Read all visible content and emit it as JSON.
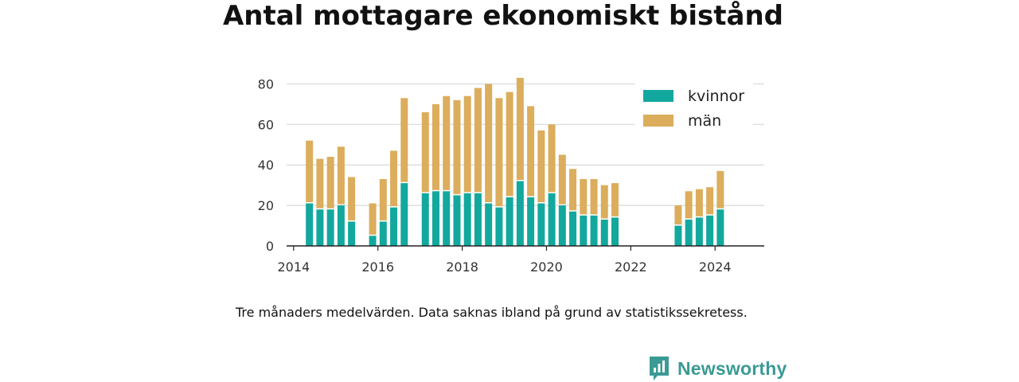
{
  "title": "Antal mottagare ekonomiskt bistånd",
  "note": "Tre månaders medelvärden. Data saknas ibland på grund av statistikssekretess.",
  "brand": {
    "name": "Newsworthy",
    "color": "#3a9a94",
    "icon": "newsworthy-logo-icon"
  },
  "colors": {
    "kvinnor": "#13a89e",
    "man": "#dbad5c",
    "grid": "#d9d9d9",
    "axis": "#222222"
  },
  "chart_data": {
    "type": "bar",
    "stacked": true,
    "title": "Antal mottagare ekonomiskt bistånd",
    "xlabel": "",
    "ylabel": "",
    "x_ticks": [
      "2014",
      "2016",
      "2018",
      "2020",
      "2022",
      "2024"
    ],
    "y_ticks": [
      0,
      20,
      40,
      60,
      80
    ],
    "ylim": [
      0,
      90
    ],
    "xlim": [
      "2013-11",
      "2025-03"
    ],
    "grid": true,
    "legend_position": "top-right",
    "x": [
      "2014-05",
      "2014-08",
      "2014-11",
      "2015-02",
      "2015-05",
      "2015-11",
      "2016-02",
      "2016-05",
      "2016-08",
      "2017-02",
      "2017-05",
      "2017-08",
      "2017-11",
      "2018-02",
      "2018-05",
      "2018-08",
      "2018-11",
      "2019-02",
      "2019-05",
      "2019-08",
      "2019-11",
      "2020-02",
      "2020-05",
      "2020-08",
      "2020-11",
      "2021-02",
      "2021-05",
      "2021-08",
      "2023-02",
      "2023-05",
      "2023-08",
      "2023-11",
      "2024-02"
    ],
    "series": [
      {
        "name": "kvinnor",
        "color": "#13a89e",
        "values": [
          21,
          18,
          18,
          20,
          12,
          5,
          12,
          19,
          31,
          26,
          27,
          27,
          25,
          26,
          26,
          21,
          19,
          24,
          32,
          24,
          21,
          26,
          20,
          17,
          15,
          15,
          13,
          14,
          10,
          13,
          14,
          15,
          18
        ]
      },
      {
        "name": "män",
        "color": "#dbad5c",
        "values": [
          31,
          25,
          26,
          29,
          22,
          16,
          21,
          28,
          42,
          40,
          43,
          47,
          47,
          48,
          52,
          59,
          54,
          52,
          51,
          45,
          36,
          34,
          25,
          21,
          18,
          18,
          17,
          17,
          10,
          14,
          14,
          14,
          19
        ]
      }
    ]
  }
}
